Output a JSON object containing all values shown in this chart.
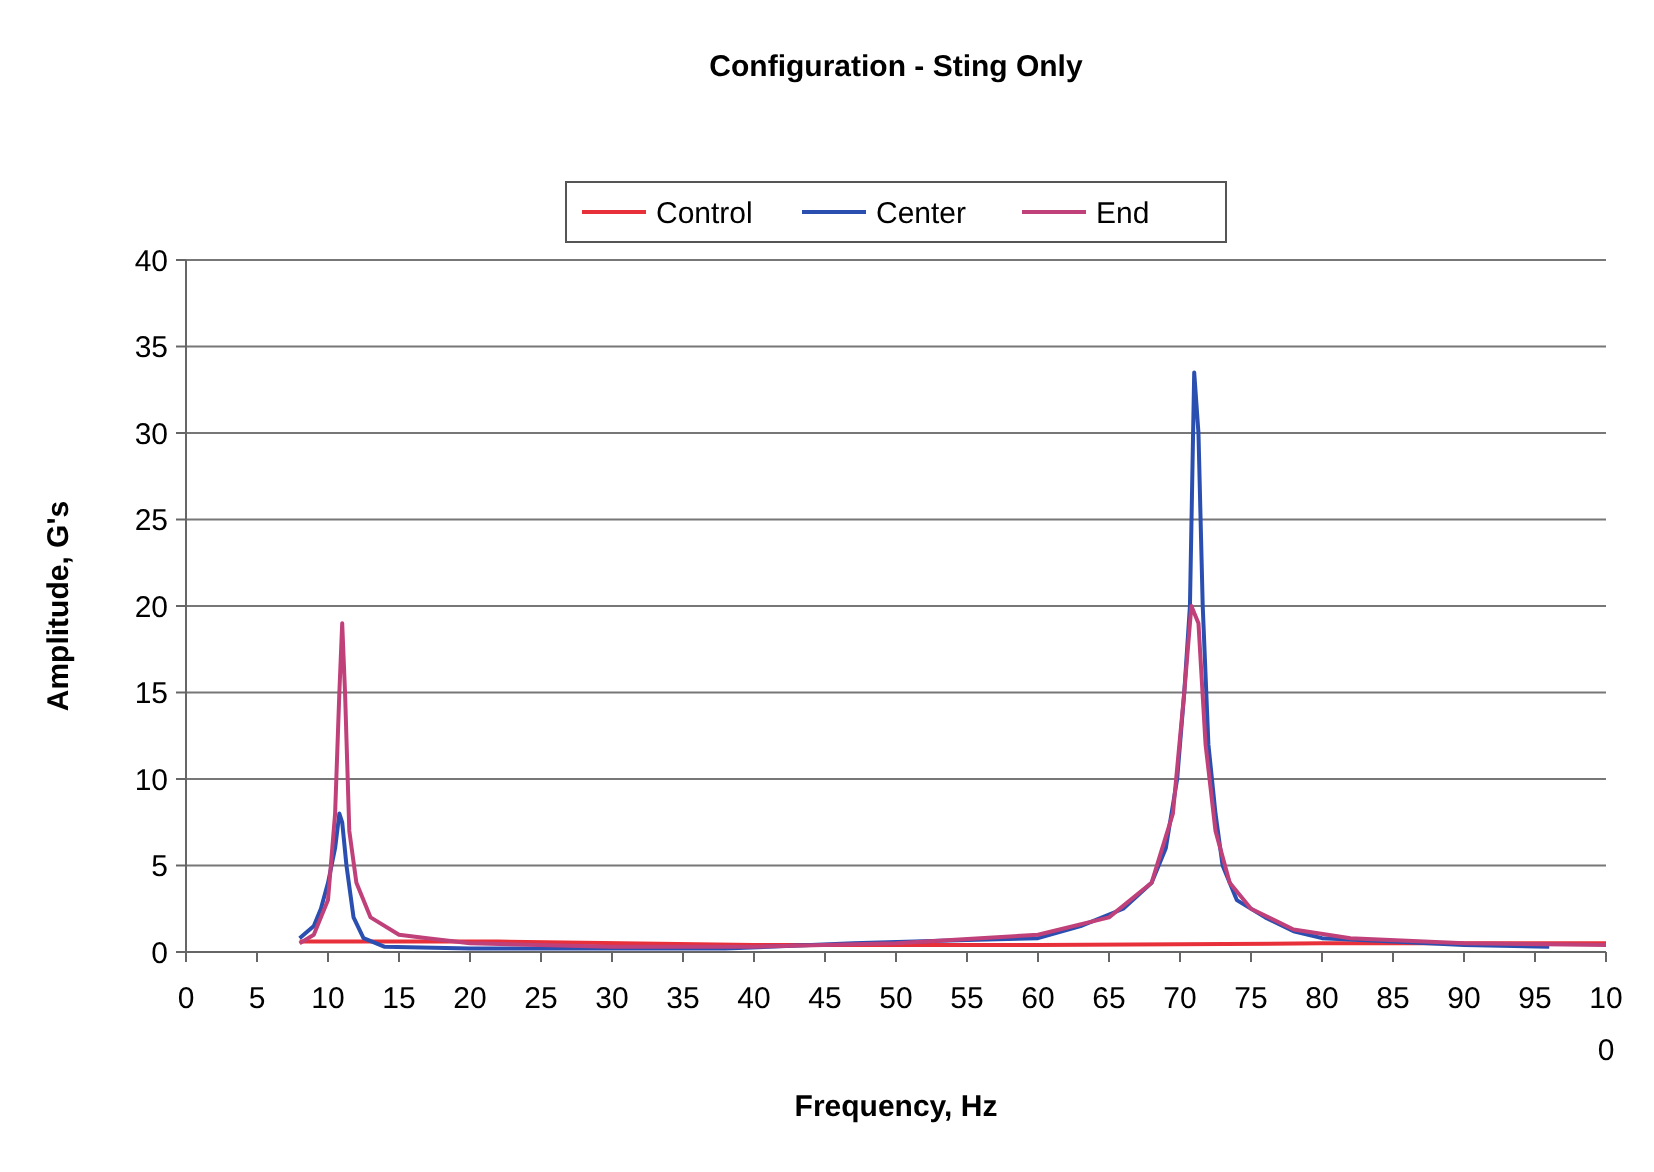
{
  "chart_data": {
    "type": "line",
    "title": "Configuration - Sting Only",
    "xlabel": "Frequency, Hz",
    "ylabel": "Amplitude, G's",
    "xlim": [
      0,
      100
    ],
    "xticks": [
      0,
      5,
      10,
      15,
      20,
      25,
      30,
      35,
      40,
      45,
      50,
      55,
      60,
      65,
      70,
      75,
      80,
      85,
      90,
      95,
      100
    ],
    "ylim": [
      0,
      40
    ],
    "yticks": [
      0,
      5,
      10,
      15,
      20,
      25,
      30,
      35,
      40
    ],
    "grid": "y",
    "legend": "top",
    "marker": "none",
    "line_style": "solid",
    "series": [
      {
        "name": "Control",
        "color": "#e8303a",
        "x": [
          8,
          22,
          40,
          60,
          80,
          100
        ],
        "values": [
          0.6,
          0.6,
          0.4,
          0.4,
          0.5,
          0.5
        ]
      },
      {
        "name": "Center",
        "color": "#2b4fb0",
        "x": [
          8,
          9,
          9.5,
          10,
          10.5,
          10.8,
          11,
          11.3,
          11.8,
          12.5,
          14,
          20,
          30,
          38,
          47,
          55,
          60,
          63,
          66,
          68,
          69,
          69.8,
          70.3,
          70.7,
          71,
          71.3,
          71.6,
          72,
          72.5,
          73,
          74,
          76,
          78,
          80,
          85,
          90,
          96
        ],
        "values": [
          0.8,
          1.5,
          2.5,
          4,
          6,
          8,
          7.5,
          5,
          2,
          0.8,
          0.3,
          0.2,
          0.2,
          0.2,
          0.5,
          0.7,
          0.8,
          1.5,
          2.5,
          4,
          6,
          10,
          15,
          20,
          33.5,
          30,
          20,
          12,
          8,
          5,
          3,
          2,
          1.2,
          0.8,
          0.6,
          0.4,
          0.3
        ]
      },
      {
        "name": "End",
        "color": "#c0407a",
        "x": [
          8,
          9,
          10,
          10.5,
          10.8,
          11,
          11.2,
          11.5,
          12,
          13,
          15,
          17,
          20,
          30,
          40,
          50,
          60,
          65,
          68,
          69.5,
          70.3,
          70.8,
          71.3,
          71.8,
          72.5,
          73.5,
          75,
          78,
          82,
          90,
          100
        ],
        "values": [
          0.5,
          1,
          3,
          8,
          15,
          19,
          15,
          7,
          4,
          2,
          1,
          0.8,
          0.5,
          0.3,
          0.3,
          0.5,
          1.0,
          2,
          4,
          8,
          15,
          20,
          19,
          12,
          7,
          4,
          2.5,
          1.3,
          0.8,
          0.5,
          0.4
        ]
      }
    ]
  }
}
